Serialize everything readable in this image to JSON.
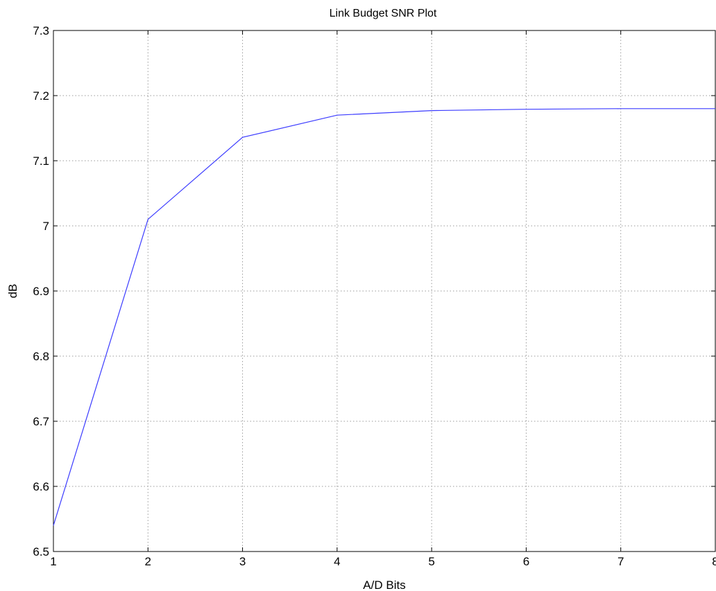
{
  "chart_data": {
    "type": "line",
    "title": "Link Budget SNR Plot",
    "xlabel": "A/D Bits",
    "ylabel": "dB",
    "xlim": [
      1,
      8
    ],
    "ylim": [
      6.5,
      7.3
    ],
    "grid": true,
    "x_ticks": [
      1,
      2,
      3,
      4,
      5,
      6,
      7,
      8
    ],
    "x_tick_labels": [
      "1",
      "2",
      "3",
      "4",
      "5",
      "6",
      "7",
      "8"
    ],
    "y_ticks": [
      6.5,
      6.6,
      6.7,
      6.8,
      6.9,
      7.0,
      7.1,
      7.2,
      7.3
    ],
    "y_tick_labels": [
      "6.5",
      "6.6",
      "6.7",
      "6.8",
      "6.9",
      "7",
      "7.1",
      "7.2",
      "7.3"
    ],
    "series": [
      {
        "color": "#3b3bff",
        "x": [
          1,
          2,
          3,
          4,
          5,
          6,
          7,
          8
        ],
        "y": [
          6.54,
          7.01,
          7.136,
          7.17,
          7.177,
          7.179,
          7.18,
          7.18
        ]
      }
    ]
  }
}
